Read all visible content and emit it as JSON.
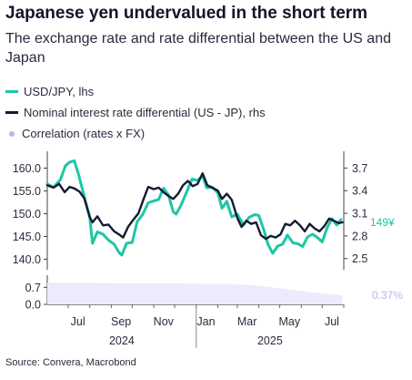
{
  "header": {
    "title": "Japanese yen undervalued in the short term",
    "subtitle": "The exchange rate and rate differential between the US and Japan"
  },
  "source": "Source: Convera, Macrobond",
  "colors": {
    "usdjpy": "#1ec6a6",
    "diff": "#141a33",
    "corr": "#b9b4f0",
    "corr_fill": "#eceafb",
    "text": "#2a2a3d"
  },
  "chart_data": [
    {
      "type": "line",
      "title": "",
      "xlabel": "",
      "x_tick_labels": [
        "Jul",
        "Sep",
        "Nov",
        "Jan",
        "Mar",
        "May",
        "Jul"
      ],
      "year_labels": [
        "2024",
        "2025"
      ],
      "x_range": [
        "2024-06-01",
        "2025-08-01"
      ],
      "left_axis": {
        "ticks": [
          "160.0",
          "155.0",
          "150.0",
          "145.0",
          "140.0"
        ],
        "ylim": [
          138.5,
          162.5
        ]
      },
      "right_axis": {
        "ticks": [
          "3.7",
          "3.4",
          "3.1",
          "2.8",
          "2.5"
        ],
        "ylim": [
          2.4,
          3.85
        ]
      },
      "series": [
        {
          "name": "USD/JPY, lhs",
          "axis": "left",
          "end_label": "149¥",
          "x": [
            "2024-06-01",
            "2024-06-10",
            "2024-06-20",
            "2024-06-27",
            "2024-07-03",
            "2024-07-10",
            "2024-07-16",
            "2024-07-24",
            "2024-08-01",
            "2024-08-05",
            "2024-08-12",
            "2024-08-20",
            "2024-08-28",
            "2024-09-05",
            "2024-09-12",
            "2024-09-16",
            "2024-09-23",
            "2024-10-01",
            "2024-10-08",
            "2024-10-16",
            "2024-10-24",
            "2024-11-01",
            "2024-11-08",
            "2024-11-15",
            "2024-11-22",
            "2024-11-29",
            "2024-12-03",
            "2024-12-10",
            "2024-12-18",
            "2024-12-26",
            "2025-01-03",
            "2025-01-10",
            "2025-01-16",
            "2025-01-24",
            "2025-02-01",
            "2025-02-07",
            "2025-02-14",
            "2025-02-21",
            "2025-03-01",
            "2025-03-10",
            "2025-03-18",
            "2025-03-26",
            "2025-04-01",
            "2025-04-08",
            "2025-04-14",
            "2025-04-21",
            "2025-04-28",
            "2025-05-05",
            "2025-05-12",
            "2025-05-20",
            "2025-05-27",
            "2025-06-03",
            "2025-06-10",
            "2025-06-17",
            "2025-06-24",
            "2025-07-01",
            "2025-07-08",
            "2025-07-15",
            "2025-07-22",
            "2025-07-28"
          ],
          "y": [
            156.5,
            155.8,
            157.5,
            160.5,
            161.3,
            161.6,
            158.6,
            153.8,
            149.2,
            143.5,
            146.0,
            145.5,
            144.2,
            143.3,
            141.5,
            140.9,
            143.5,
            143.7,
            148.2,
            149.8,
            152.4,
            152.8,
            153.1,
            155.6,
            154.1,
            150.4,
            149.9,
            151.8,
            154.7,
            157.6,
            157.3,
            158.3,
            155.7,
            155.8,
            154.6,
            151.2,
            152.7,
            149.3,
            149.9,
            147.5,
            149.2,
            149.8,
            149.6,
            146.5,
            143.3,
            141.3,
            142.9,
            143.3,
            145.3,
            143.6,
            143.4,
            142.8,
            144.9,
            145.5,
            144.8,
            143.8,
            146.9,
            148.9,
            147.5,
            148.7
          ]
        },
        {
          "name": "Nominal interest rate differential (US - JP), rhs",
          "axis": "right",
          "x": [
            "2024-06-01",
            "2024-06-10",
            "2024-06-18",
            "2024-06-26",
            "2024-07-03",
            "2024-07-10",
            "2024-07-17",
            "2024-07-24",
            "2024-08-01",
            "2024-08-05",
            "2024-08-12",
            "2024-08-20",
            "2024-08-28",
            "2024-09-05",
            "2024-09-12",
            "2024-09-18",
            "2024-09-25",
            "2024-10-03",
            "2024-10-10",
            "2024-10-17",
            "2024-10-24",
            "2024-11-01",
            "2024-11-08",
            "2024-11-15",
            "2024-11-22",
            "2024-11-29",
            "2024-12-06",
            "2024-12-13",
            "2024-12-20",
            "2024-12-27",
            "2025-01-03",
            "2025-01-10",
            "2025-01-17",
            "2025-01-24",
            "2025-02-01",
            "2025-02-07",
            "2025-02-14",
            "2025-02-21",
            "2025-03-01",
            "2025-03-07",
            "2025-03-14",
            "2025-03-21",
            "2025-03-28",
            "2025-04-04",
            "2025-04-11",
            "2025-04-18",
            "2025-04-25",
            "2025-05-02",
            "2025-05-09",
            "2025-05-16",
            "2025-05-23",
            "2025-05-30",
            "2025-06-06",
            "2025-06-13",
            "2025-06-20",
            "2025-06-27",
            "2025-07-04",
            "2025-07-11",
            "2025-07-18",
            "2025-07-25",
            "2025-07-30"
          ],
          "y": [
            3.47,
            3.44,
            3.49,
            3.38,
            3.45,
            3.43,
            3.39,
            3.3,
            3.05,
            2.98,
            3.06,
            2.94,
            2.95,
            2.86,
            2.82,
            2.78,
            2.92,
            3.02,
            3.1,
            3.28,
            3.45,
            3.42,
            3.44,
            3.38,
            3.33,
            3.29,
            3.36,
            3.47,
            3.53,
            3.46,
            3.49,
            3.63,
            3.47,
            3.44,
            3.4,
            3.29,
            3.36,
            3.28,
            3.04,
            2.92,
            3.0,
            2.96,
            2.98,
            2.81,
            2.76,
            2.8,
            2.78,
            2.82,
            2.96,
            2.94,
            3.0,
            2.94,
            2.86,
            2.96,
            2.9,
            2.86,
            2.93,
            3.03,
            3.0,
            2.97,
            2.98
          ]
        },
        {
          "name": "Correlation (rates x FX)",
          "axis": "corr",
          "type": "area",
          "end_label": "0.37%",
          "x": [
            "2024-06-01",
            "2024-08-01",
            "2024-10-01",
            "2024-12-01",
            "2025-02-01",
            "2025-03-20",
            "2025-05-01",
            "2025-06-15",
            "2025-07-30"
          ],
          "y": [
            0.89,
            0.88,
            0.87,
            0.86,
            0.84,
            0.8,
            0.66,
            0.5,
            0.37
          ]
        }
      ],
      "corr_axis": {
        "ticks": [
          "0.7",
          "0.0"
        ],
        "ylim": [
          0.0,
          1.05
        ]
      },
      "grid": false,
      "legend": "top-left"
    }
  ]
}
